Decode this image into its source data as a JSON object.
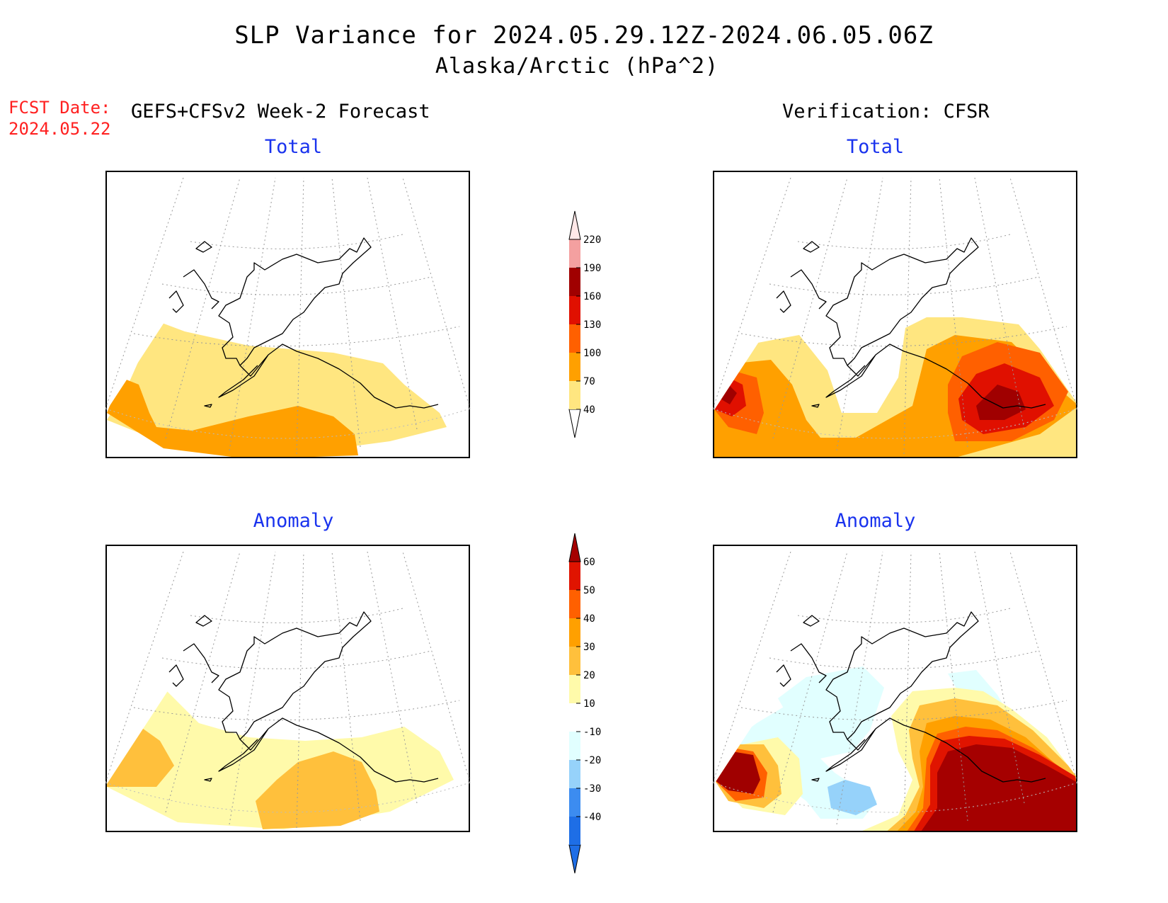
{
  "title": "SLP Variance for 2024.05.29.12Z-2024.06.05.06Z",
  "subtitle": "Alaska/Arctic (hPa^2)",
  "fcst_label": "FCST Date:",
  "fcst_date": "2024.05.22",
  "left_header": "GEFS+CFSv2 Week-2 Forecast",
  "right_header": "Verification: CFSR",
  "panels": {
    "fc_total": {
      "title": "Total"
    },
    "ver_total": {
      "title": "Total"
    },
    "fc_anom": {
      "title": "Anomaly"
    },
    "ver_anom": {
      "title": "Anomaly"
    }
  },
  "colorbars": {
    "total": {
      "levels": [
        "40",
        "70",
        "100",
        "130",
        "160",
        "190",
        "220"
      ],
      "colors": [
        "#ffe680",
        "#ffa000",
        "#ff6000",
        "#e01000",
        "#a00000",
        "#f4a0a0",
        "#ffe8e8"
      ],
      "extend_low_color": "#ffffff"
    },
    "anomaly": {
      "levels": [
        "-40",
        "-30",
        "-20",
        "-10",
        "10",
        "20",
        "30",
        "40",
        "50",
        "60"
      ],
      "colors": [
        "#1e6ee6",
        "#3c8cf0",
        "#96d2fa",
        "#e1ffff",
        "#ffffff",
        "#fffaaa",
        "#ffc03c",
        "#ffa000",
        "#ff6000",
        "#e01400",
        "#a50000"
      ]
    }
  }
}
